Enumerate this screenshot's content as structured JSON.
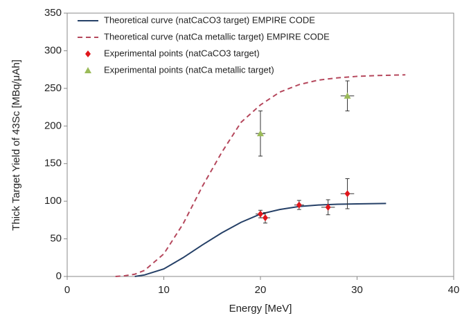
{
  "chart_data": {
    "type": "line",
    "xlabel": "Energy  [MeV]",
    "ylabel": "Thick Target Yield of  43Sc [MBq/μAh]",
    "xlim": [
      0,
      40
    ],
    "xticks": [
      0,
      10,
      20,
      30,
      40
    ],
    "ylim": [
      0,
      350
    ],
    "yticks": [
      0,
      50,
      100,
      150,
      200,
      250,
      300,
      350
    ],
    "grid": false,
    "legend": "upper left",
    "series": [
      {
        "name": "Theoretical curve (natCaCO3 target) EMPIRE CODE",
        "type": "line",
        "style": "solid",
        "color": "#243f66",
        "x": [
          7,
          8,
          10,
          12,
          14,
          16,
          18,
          20,
          22,
          24,
          26,
          28,
          30,
          33
        ],
        "values": [
          0,
          2,
          10,
          25,
          42,
          58,
          72,
          83,
          89,
          93,
          95,
          96,
          96.5,
          97
        ]
      },
      {
        "name": "Theoretical curve (natCa metallic target) EMPIRE CODE",
        "type": "line",
        "style": "dashed",
        "color": "#b5475c",
        "x": [
          5,
          6,
          7,
          8,
          10,
          12,
          14,
          16,
          18,
          20,
          22,
          24,
          26,
          28,
          30,
          32,
          35
        ],
        "values": [
          0,
          1,
          3,
          8,
          30,
          70,
          120,
          165,
          205,
          228,
          245,
          255,
          261,
          264,
          266,
          267,
          268
        ]
      },
      {
        "name": "Experimental points (natCaCO3 target)",
        "type": "scatter",
        "marker": "diamond",
        "color": "#e0161b",
        "x": [
          20,
          20.5,
          24,
          27,
          29
        ],
        "values": [
          83,
          78,
          95,
          92,
          110
        ],
        "yerr": [
          5,
          7,
          6,
          10,
          20
        ],
        "xerr": [
          0.5,
          0.5,
          0.5,
          0.7,
          0.7
        ]
      },
      {
        "name": "Experimental points (natCa metallic target)",
        "type": "scatter",
        "marker": "triangle",
        "color": "#9bbb59",
        "x": [
          20,
          29
        ],
        "values": [
          190,
          240
        ],
        "yerr": [
          30,
          20
        ],
        "xerr": [
          0.5,
          0.7
        ]
      }
    ]
  }
}
